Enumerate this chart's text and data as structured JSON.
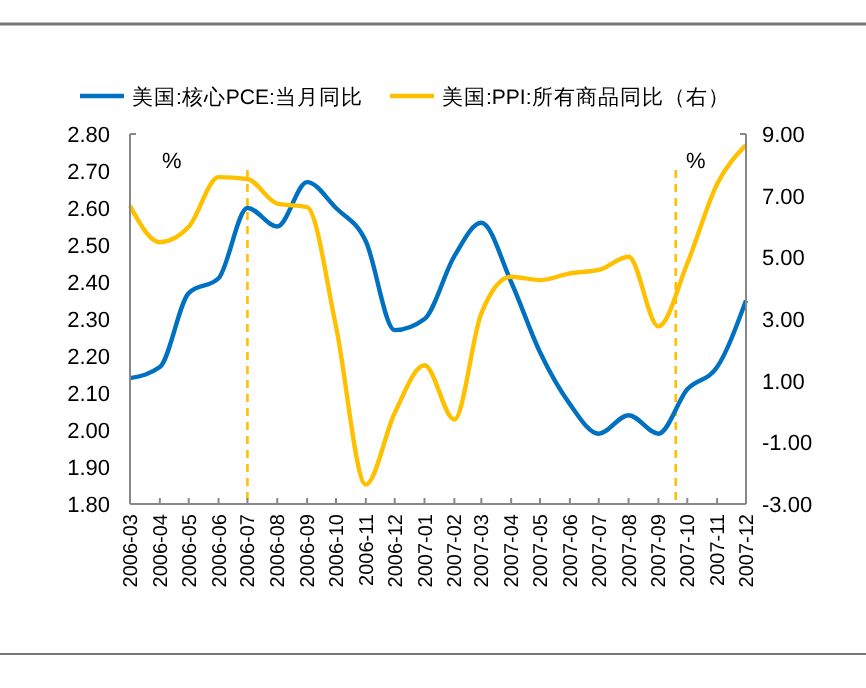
{
  "chart_data": {
    "type": "line",
    "x": [
      "2006-03",
      "2006-04",
      "2006-05",
      "2006-06",
      "2006-07",
      "2006-08",
      "2006-09",
      "2006-10",
      "2006-11",
      "2006-12",
      "2007-01",
      "2007-02",
      "2007-03",
      "2007-04",
      "2007-05",
      "2007-06",
      "2007-07",
      "2007-08",
      "2007-09",
      "2007-10",
      "2007-11",
      "2007-12"
    ],
    "series": [
      {
        "name": "美国:核心PCE:当月同比",
        "color": "#0070c0",
        "values": [
          2.14,
          2.17,
          2.37,
          2.41,
          2.6,
          2.55,
          2.67,
          2.6,
          2.51,
          2.27,
          2.3,
          2.47,
          2.56,
          2.4,
          2.21,
          2.07,
          1.99,
          2.04,
          1.99,
          2.11,
          2.17,
          2.35
        ]
      },
      {
        "name": "美国:PPI:所有商品同比（右）",
        "color": "#ffc000",
        "axis": "y2",
        "values": [
          6.67,
          5.49,
          5.99,
          7.6,
          7.54,
          6.74,
          6.63,
          2.76,
          -2.37,
          -0.05,
          1.5,
          -0.26,
          3.18,
          4.37,
          4.26,
          4.48,
          4.59,
          5.02,
          2.76,
          4.8,
          7.38,
          8.64
        ]
      }
    ],
    "xlim": [
      "2006-03",
      "2007-12"
    ],
    "xticks": [
      "2006-03",
      "2006-04",
      "2006-05",
      "2006-06",
      "2006-07",
      "2006-08",
      "2006-09",
      "2006-10",
      "2006-11",
      "2006-12",
      "2007-01",
      "2007-02",
      "2007-03",
      "2007-04",
      "2007-05",
      "2007-06",
      "2007-07",
      "2007-08",
      "2007-09",
      "2007-10",
      "2007-11",
      "2007-12"
    ],
    "ylim": [
      1.8,
      2.8
    ],
    "yticks": [
      {
        "value": 1.8,
        "label": "1.80"
      },
      {
        "value": 1.9,
        "label": "1.90"
      },
      {
        "value": 2,
        "label": "2.00"
      },
      {
        "value": 2.1,
        "label": "2.10"
      },
      {
        "value": 2.2,
        "label": "2.20"
      },
      {
        "value": 2.3,
        "label": "2.30"
      },
      {
        "value": 2.4,
        "label": "2.40"
      },
      {
        "value": 2.5,
        "label": "2.50"
      },
      {
        "value": 2.6,
        "label": "2.60"
      },
      {
        "value": 2.7,
        "label": "2.70"
      },
      {
        "value": 2.8,
        "label": "2.80"
      }
    ],
    "y2lim": [
      -3,
      9
    ],
    "y2ticks": [
      {
        "value": -3,
        "label": "-3.00"
      },
      {
        "value": -1,
        "label": "-1.00"
      },
      {
        "value": 1,
        "label": "1.00"
      },
      {
        "value": 3,
        "label": "3.00"
      },
      {
        "value": 5,
        "label": "5.00"
      },
      {
        "value": 7,
        "label": "7.00"
      },
      {
        "value": 9,
        "label": "9.00"
      }
    ],
    "ref_lines": [
      {
        "axis": "x",
        "value": "2006-07",
        "color": "#ffc000",
        "line_style": "dashed"
      },
      {
        "axis": "x",
        "value": "2007-09-19",
        "color": "#ffc000",
        "line_style": "dashed"
      }
    ],
    "annotations": [
      "%",
      "%"
    ],
    "legend": "top",
    "grid": false,
    "marker": "none",
    "line_style": "solid"
  }
}
